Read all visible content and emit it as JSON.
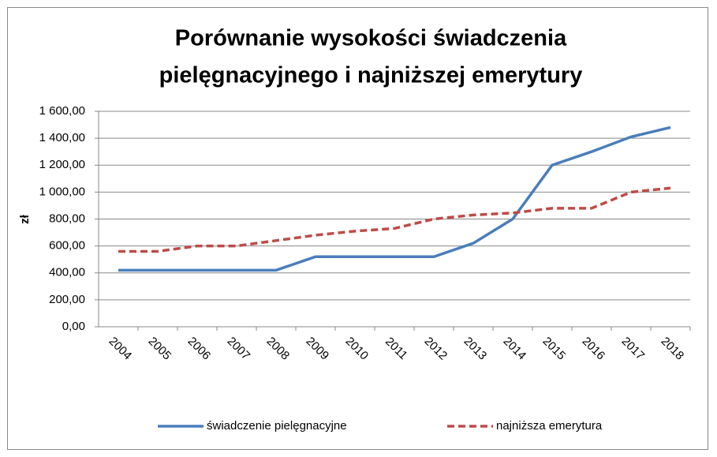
{
  "chart_data": {
    "type": "line",
    "title": "Porównanie wysokości świadczenia pielęgnacyjnego i najniższej emerytury",
    "title_lines": [
      "Porównanie wysokości świadczenia",
      "pielęgnacyjnego i najniższej emerytury"
    ],
    "y_label": "zł",
    "categories": [
      "2004",
      "2005",
      "2006",
      "2007",
      "2008",
      "2009",
      "2010",
      "2011",
      "2012",
      "2013",
      "2014",
      "2015",
      "2016",
      "2017",
      "2018"
    ],
    "series": [
      {
        "name": "świadczenie pielęgnacyjne",
        "color": "#4a7ebb",
        "dash": false,
        "values": [
          420,
          420,
          420,
          420,
          420,
          520,
          520,
          520,
          520,
          620,
          800,
          1200,
          1300,
          1410,
          1480
        ]
      },
      {
        "name": "najniższa emerytura",
        "color": "#be4b48",
        "dash": true,
        "values": [
          560,
          560,
          600,
          600,
          640,
          680,
          710,
          730,
          800,
          830,
          845,
          880,
          880,
          1000,
          1030
        ]
      }
    ],
    "ylim": [
      0,
      1600
    ],
    "yticks": [
      {
        "value": 0,
        "label": "0,00"
      },
      {
        "value": 200,
        "label": "200,00"
      },
      {
        "value": 400,
        "label": "400,00"
      },
      {
        "value": 600,
        "label": "600,00"
      },
      {
        "value": 800,
        "label": "800,00"
      },
      {
        "value": 1000,
        "label": "1 000,00"
      },
      {
        "value": 1200,
        "label": "1 200,00"
      },
      {
        "value": 1400,
        "label": "1 400,00"
      },
      {
        "value": 1600,
        "label": "1 600,00"
      }
    ],
    "grid": true,
    "legend": "bottom"
  }
}
